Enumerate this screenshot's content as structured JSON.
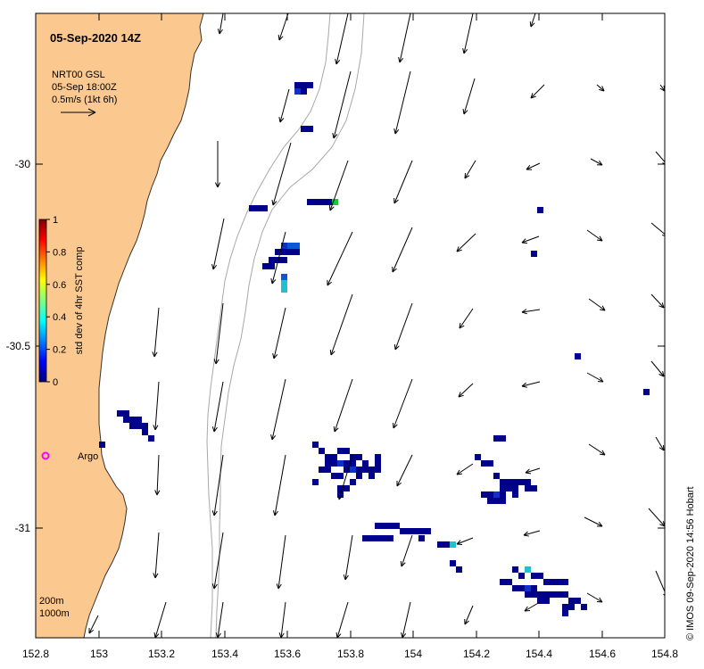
{
  "map": {
    "title": "05-Sep-2020 14Z",
    "product": "NRT00 GSL",
    "product_time": "05-Sep 18:00Z",
    "vector_scale_text": "0.5m/s (1kt 6h)",
    "argo_label": "Argo",
    "credit": "© IMOS 09-Sep-2020 14:56 Hobart",
    "isobath_labels": [
      "200m",
      "1000m"
    ],
    "x_ticks": [
      "152.8",
      "153",
      "153.2",
      "153.4",
      "153.6",
      "153.8",
      "154",
      "154.2",
      "154.4",
      "154.6",
      "154.8"
    ],
    "y_ticks": [
      "-30",
      "-30.5",
      "-31"
    ],
    "colors": {
      "land": "#fbc98f",
      "coast": "#333333",
      "isobath": "#a8a8a8",
      "argo": "#ff00ff"
    }
  },
  "colorbar": {
    "label": "std dev of 4hr SST comp",
    "ticks": [
      "0",
      "0.2",
      "0.4",
      "0.6",
      "0.8",
      "1"
    ],
    "range": [
      0,
      1
    ]
  }
}
